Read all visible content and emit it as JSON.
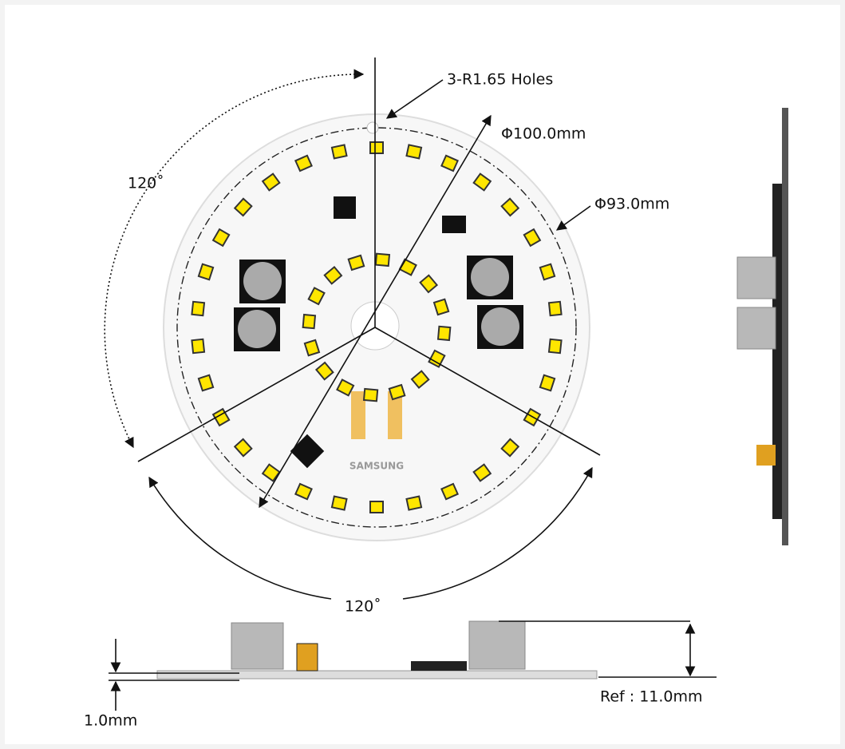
{
  "labels": {
    "holes": "3-R1.65 Holes",
    "outer_diameter": "Φ100.0mm",
    "inner_diameter": "Φ93.0mm",
    "angle_top": "120˚",
    "angle_bottom": "120˚",
    "height": "Ref : 11.0mm",
    "thickness": "1.0mm",
    "brand": "SAMSUNG"
  }
}
